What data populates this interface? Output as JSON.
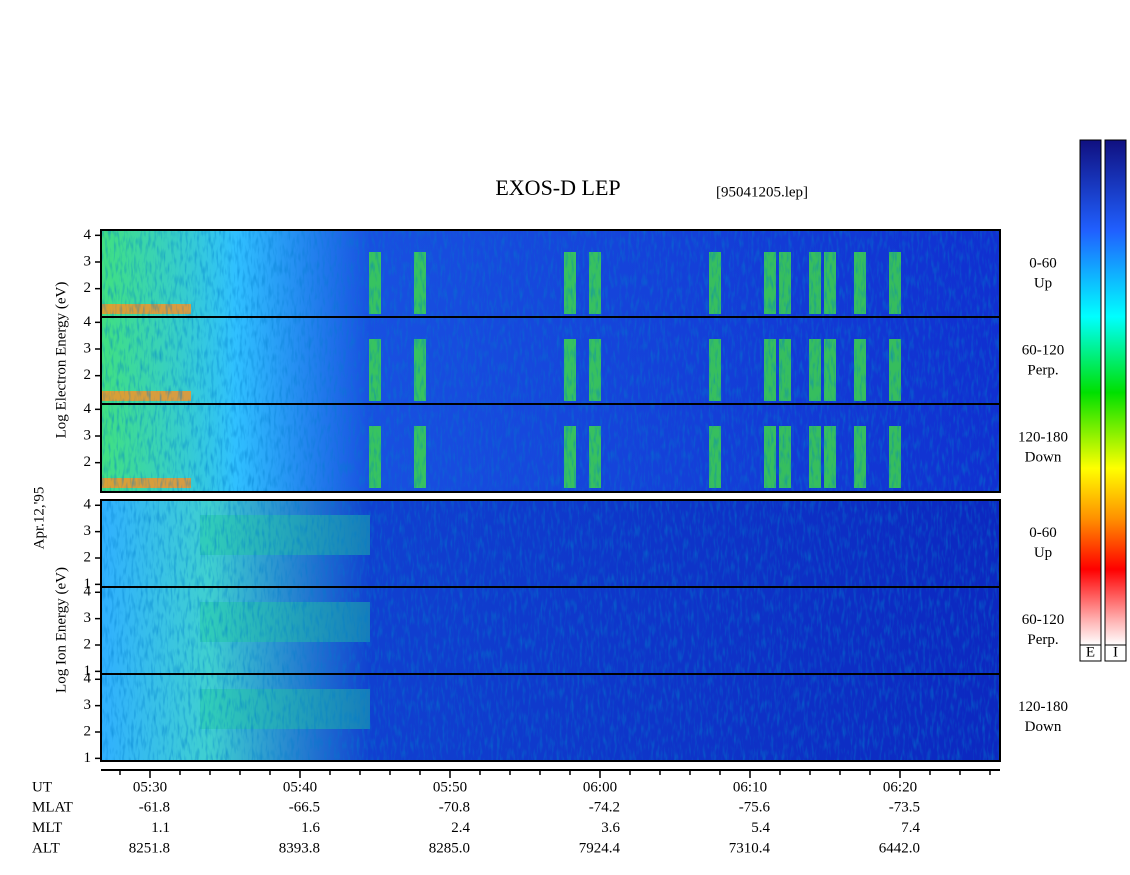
{
  "title": "EXOS-D LEP",
  "file": "[95041205.lep]",
  "date_label": "Apr.12,'95",
  "groups": [
    {
      "axis_label": "Log Electron Energy (eV)",
      "ylim": [
        0.9,
        4.2
      ],
      "yticks": [
        2,
        3,
        4
      ],
      "panels": [
        {
          "label_lines": [
            "0-60",
            "Up"
          ]
        },
        {
          "label_lines": [
            "60-120",
            "Perp."
          ]
        },
        {
          "label_lines": [
            "120-180",
            "Down"
          ]
        }
      ]
    },
    {
      "axis_label": "Log Ion Energy (eV)",
      "ylim": [
        0.9,
        4.2
      ],
      "yticks": [
        1,
        2,
        3,
        4
      ],
      "panels": [
        {
          "label_lines": [
            "0-60",
            "Up"
          ]
        },
        {
          "label_lines": [
            "60-120",
            "Perp."
          ]
        },
        {
          "label_lines": [
            "120-180",
            "Down"
          ]
        }
      ]
    }
  ],
  "rows": [
    {
      "label": "UT",
      "values": [
        "05:30",
        "05:40",
        "05:50",
        "06:00",
        "06:10",
        "06:20"
      ]
    },
    {
      "label": "MLAT",
      "values": [
        "-61.8",
        "-66.5",
        "-70.8",
        "-74.2",
        "-75.6",
        "-73.5"
      ]
    },
    {
      "label": "MLT",
      "values": [
        "1.1",
        "1.6",
        "2.4",
        "3.6",
        "5.4",
        "7.4"
      ]
    },
    {
      "label": "ALT",
      "values": [
        "8251.8",
        "8393.8",
        "8285.0",
        "7924.4",
        "7310.4",
        "6442.0"
      ]
    }
  ],
  "colorbars": [
    "E",
    "I"
  ]
}
